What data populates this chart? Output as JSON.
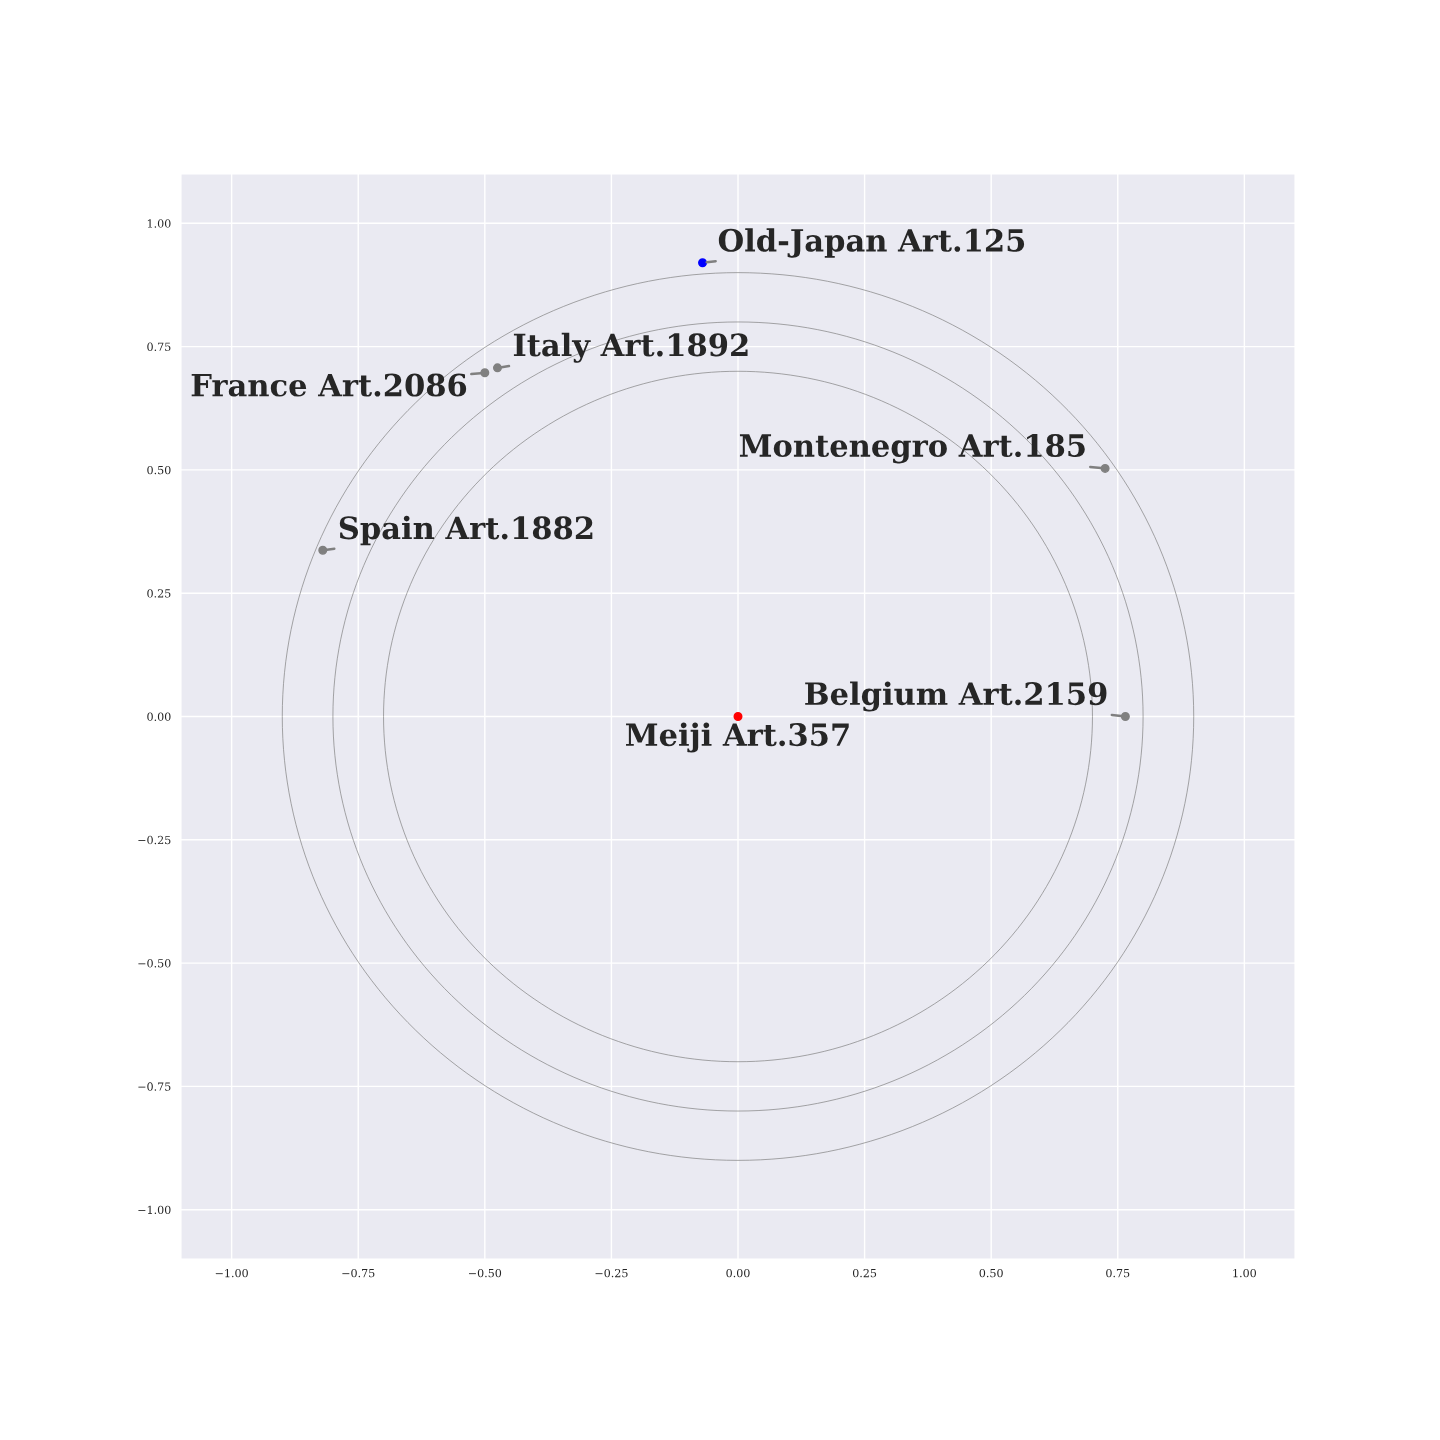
{
  "chart_data": {
    "type": "scatter",
    "grid": true,
    "marker": "circle",
    "xlim": [
      -1.1,
      1.1
    ],
    "ylim": [
      -1.1,
      1.1
    ],
    "xticks": [
      {
        "value": -1.0,
        "label": "−1.00"
      },
      {
        "value": -0.75,
        "label": "−0.75"
      },
      {
        "value": -0.5,
        "label": "−0.50"
      },
      {
        "value": -0.25,
        "label": "−0.25"
      },
      {
        "value": 0.0,
        "label": "0.00"
      },
      {
        "value": 0.25,
        "label": "0.25"
      },
      {
        "value": 0.5,
        "label": "0.50"
      },
      {
        "value": 0.75,
        "label": "0.75"
      },
      {
        "value": 1.0,
        "label": "1.00"
      }
    ],
    "yticks": [
      {
        "value": -1.0,
        "label": "−1.00"
      },
      {
        "value": -0.75,
        "label": "−0.75"
      },
      {
        "value": -0.5,
        "label": "−0.50"
      },
      {
        "value": -0.25,
        "label": "−0.25"
      },
      {
        "value": 0.0,
        "label": "0.00"
      },
      {
        "value": 0.25,
        "label": "0.25"
      },
      {
        "value": 0.5,
        "label": "0.50"
      },
      {
        "value": 0.75,
        "label": "0.75"
      },
      {
        "value": 1.0,
        "label": "1.00"
      }
    ],
    "series": [
      {
        "x": [
          -0.07,
          -0.475,
          -0.5,
          0.725,
          -0.82,
          0.765,
          0.0
        ],
        "values": [
          0.92,
          0.707,
          0.697,
          0.503,
          0.337,
          0.0,
          0.0
        ],
        "colors": [
          "#0000ff",
          "#808080",
          "#808080",
          "#808080",
          "#808080",
          "#808080",
          "#ff0000"
        ]
      }
    ],
    "annotations": [
      {
        "text": "Old-Japan Art.125",
        "x": -0.07,
        "y": 0.92
      },
      {
        "text": "Italy Art.1892",
        "x": -0.475,
        "y": 0.707
      },
      {
        "text": "France Art.2086",
        "x": -0.5,
        "y": 0.697
      },
      {
        "text": "Montenegro Art.185",
        "x": 0.725,
        "y": 0.503
      },
      {
        "text": "Spain Art.1882",
        "x": -0.82,
        "y": 0.337
      },
      {
        "text": "Belgium Art.2159",
        "x": 0.765,
        "y": 0.0
      },
      {
        "text": "Meiji Art.357",
        "x": 0.0,
        "y": 0.0
      }
    ]
  }
}
